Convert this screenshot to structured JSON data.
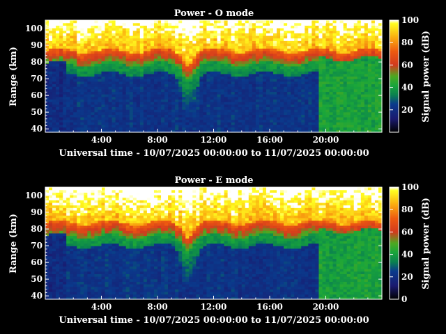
{
  "chart_data": [
    {
      "type": "heatmap",
      "title": "Power - O mode",
      "xlabel": "Universal time - 10/07/2025 00:00:00 to 11/07/2025 00:00:00",
      "ylabel": "Range (km)",
      "xlim_hours": [
        0,
        24
      ],
      "ylim": [
        38,
        105
      ],
      "x_tick_values_hours": [
        4,
        8,
        12,
        16,
        20
      ],
      "x_tick_labels": [
        "4:00",
        "8:00",
        "12:00",
        "16:00",
        "20:00"
      ],
      "y_ticks": [
        40,
        50,
        60,
        70,
        80,
        90,
        100
      ],
      "colorbar": {
        "label": "Signal power (dB)",
        "ticks": [
          20,
          40,
          60,
          80,
          100
        ],
        "range": [
          0,
          100
        ],
        "colormap": "IDL rainbow (black-blue-green-red-yellow-white)"
      },
      "pattern": {
        "strong_layer_top_km": [
          86,
          105
        ],
        "strong_layer_base_km": 79,
        "descent_near_hours": 10.2,
        "descent_lowest_km": 57,
        "late_day_green_hours": [
          19.5,
          24
        ]
      }
    },
    {
      "type": "heatmap",
      "title": "Power - E mode",
      "xlabel": "Universal time - 10/07/2025 00:00:00 to 11/07/2025 00:00:00",
      "ylabel": "Range (km)",
      "xlim_hours": [
        0,
        24
      ],
      "ylim": [
        38,
        105
      ],
      "x_tick_values_hours": [
        4,
        8,
        12,
        16,
        20
      ],
      "x_tick_labels": [
        "4:00",
        "8:00",
        "12:00",
        "16:00",
        "20:00"
      ],
      "y_ticks": [
        40,
        50,
        60,
        70,
        80,
        90,
        100
      ],
      "colorbar": {
        "label": "Signal power (dB)",
        "ticks": [
          0,
          20,
          40,
          60,
          80,
          100
        ],
        "range": [
          0,
          100
        ],
        "colormap": "IDL rainbow (black-blue-green-red-yellow-white)"
      },
      "pattern": {
        "strong_layer_top_km": [
          86,
          105
        ],
        "strong_layer_base_km": 76,
        "descent_near_hours": 10.2,
        "descent_lowest_km": 55,
        "late_day_green_hours": [
          19.5,
          24
        ]
      }
    }
  ]
}
